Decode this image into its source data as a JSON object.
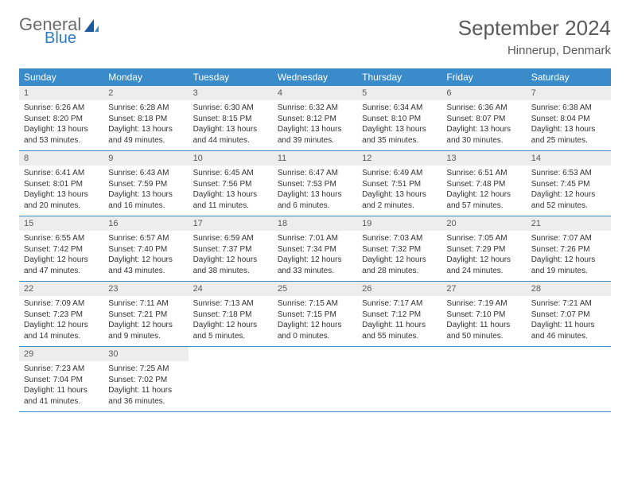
{
  "brand": {
    "line1": "General",
    "line2": "Blue"
  },
  "colors": {
    "header_bar": "#3a8bc9",
    "header_text": "#ffffff",
    "daynum_bg": "#ededed",
    "divider": "#3a8bc9",
    "logo_gray": "#6b6b6b",
    "logo_blue": "#2f7bbf",
    "title_gray": "#5a5a5a"
  },
  "title": "September 2024",
  "location": "Hinnerup, Denmark",
  "weekdays": [
    "Sunday",
    "Monday",
    "Tuesday",
    "Wednesday",
    "Thursday",
    "Friday",
    "Saturday"
  ],
  "weeks": [
    [
      {
        "n": "1",
        "sunrise": "6:26 AM",
        "sunset": "8:20 PM",
        "daylight": "13 hours and 53 minutes."
      },
      {
        "n": "2",
        "sunrise": "6:28 AM",
        "sunset": "8:18 PM",
        "daylight": "13 hours and 49 minutes."
      },
      {
        "n": "3",
        "sunrise": "6:30 AM",
        "sunset": "8:15 PM",
        "daylight": "13 hours and 44 minutes."
      },
      {
        "n": "4",
        "sunrise": "6:32 AM",
        "sunset": "8:12 PM",
        "daylight": "13 hours and 39 minutes."
      },
      {
        "n": "5",
        "sunrise": "6:34 AM",
        "sunset": "8:10 PM",
        "daylight": "13 hours and 35 minutes."
      },
      {
        "n": "6",
        "sunrise": "6:36 AM",
        "sunset": "8:07 PM",
        "daylight": "13 hours and 30 minutes."
      },
      {
        "n": "7",
        "sunrise": "6:38 AM",
        "sunset": "8:04 PM",
        "daylight": "13 hours and 25 minutes."
      }
    ],
    [
      {
        "n": "8",
        "sunrise": "6:41 AM",
        "sunset": "8:01 PM",
        "daylight": "13 hours and 20 minutes."
      },
      {
        "n": "9",
        "sunrise": "6:43 AM",
        "sunset": "7:59 PM",
        "daylight": "13 hours and 16 minutes."
      },
      {
        "n": "10",
        "sunrise": "6:45 AM",
        "sunset": "7:56 PM",
        "daylight": "13 hours and 11 minutes."
      },
      {
        "n": "11",
        "sunrise": "6:47 AM",
        "sunset": "7:53 PM",
        "daylight": "13 hours and 6 minutes."
      },
      {
        "n": "12",
        "sunrise": "6:49 AM",
        "sunset": "7:51 PM",
        "daylight": "13 hours and 2 minutes."
      },
      {
        "n": "13",
        "sunrise": "6:51 AM",
        "sunset": "7:48 PM",
        "daylight": "12 hours and 57 minutes."
      },
      {
        "n": "14",
        "sunrise": "6:53 AM",
        "sunset": "7:45 PM",
        "daylight": "12 hours and 52 minutes."
      }
    ],
    [
      {
        "n": "15",
        "sunrise": "6:55 AM",
        "sunset": "7:42 PM",
        "daylight": "12 hours and 47 minutes."
      },
      {
        "n": "16",
        "sunrise": "6:57 AM",
        "sunset": "7:40 PM",
        "daylight": "12 hours and 43 minutes."
      },
      {
        "n": "17",
        "sunrise": "6:59 AM",
        "sunset": "7:37 PM",
        "daylight": "12 hours and 38 minutes."
      },
      {
        "n": "18",
        "sunrise": "7:01 AM",
        "sunset": "7:34 PM",
        "daylight": "12 hours and 33 minutes."
      },
      {
        "n": "19",
        "sunrise": "7:03 AM",
        "sunset": "7:32 PM",
        "daylight": "12 hours and 28 minutes."
      },
      {
        "n": "20",
        "sunrise": "7:05 AM",
        "sunset": "7:29 PM",
        "daylight": "12 hours and 24 minutes."
      },
      {
        "n": "21",
        "sunrise": "7:07 AM",
        "sunset": "7:26 PM",
        "daylight": "12 hours and 19 minutes."
      }
    ],
    [
      {
        "n": "22",
        "sunrise": "7:09 AM",
        "sunset": "7:23 PM",
        "daylight": "12 hours and 14 minutes."
      },
      {
        "n": "23",
        "sunrise": "7:11 AM",
        "sunset": "7:21 PM",
        "daylight": "12 hours and 9 minutes."
      },
      {
        "n": "24",
        "sunrise": "7:13 AM",
        "sunset": "7:18 PM",
        "daylight": "12 hours and 5 minutes."
      },
      {
        "n": "25",
        "sunrise": "7:15 AM",
        "sunset": "7:15 PM",
        "daylight": "12 hours and 0 minutes."
      },
      {
        "n": "26",
        "sunrise": "7:17 AM",
        "sunset": "7:12 PM",
        "daylight": "11 hours and 55 minutes."
      },
      {
        "n": "27",
        "sunrise": "7:19 AM",
        "sunset": "7:10 PM",
        "daylight": "11 hours and 50 minutes."
      },
      {
        "n": "28",
        "sunrise": "7:21 AM",
        "sunset": "7:07 PM",
        "daylight": "11 hours and 46 minutes."
      }
    ],
    [
      {
        "n": "29",
        "sunrise": "7:23 AM",
        "sunset": "7:04 PM",
        "daylight": "11 hours and 41 minutes."
      },
      {
        "n": "30",
        "sunrise": "7:25 AM",
        "sunset": "7:02 PM",
        "daylight": "11 hours and 36 minutes."
      },
      null,
      null,
      null,
      null,
      null
    ]
  ],
  "labels": {
    "sunrise": "Sunrise: ",
    "sunset": "Sunset: ",
    "daylight": "Daylight: "
  }
}
